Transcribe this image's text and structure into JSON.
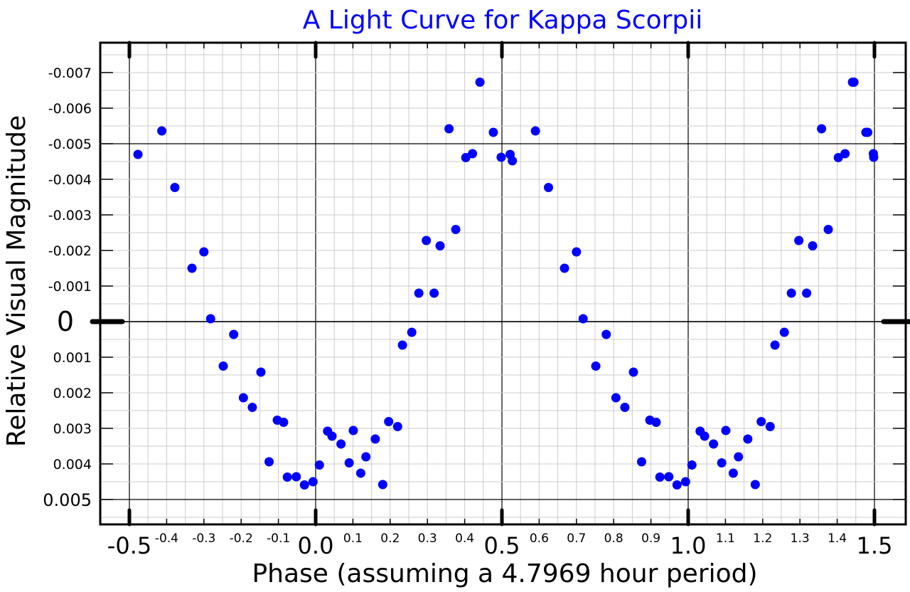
{
  "chart_data": {
    "type": "scatter",
    "title": "A Light Curve for Kappa Scorpii",
    "xlabel": "Phase (assuming a 4.7969 hour period)",
    "ylabel": "Relative Visual Magnitude",
    "xlim": [
      -0.55,
      1.55
    ],
    "ylim": [
      0.0057,
      -0.0079
    ],
    "y_inverted": true,
    "grid": true,
    "marker_color": "#0000ff",
    "title_color": "#0000ff",
    "x_ticks_major": [
      {
        "value": -0.5,
        "label": "-0.5"
      },
      {
        "value": 0.0,
        "label": "0.0"
      },
      {
        "value": 0.5,
        "label": "0.5"
      },
      {
        "value": 1.0,
        "label": "1.0"
      },
      {
        "value": 1.5,
        "label": "1.5"
      }
    ],
    "x_ticks_minor": [
      {
        "value": -0.4,
        "label": "-0.4"
      },
      {
        "value": -0.3,
        "label": "-0.3"
      },
      {
        "value": -0.2,
        "label": "-0.2"
      },
      {
        "value": -0.1,
        "label": "-0.1"
      },
      {
        "value": 0.1,
        "label": "0.1"
      },
      {
        "value": 0.2,
        "label": "0.2"
      },
      {
        "value": 0.3,
        "label": "0.3"
      },
      {
        "value": 0.4,
        "label": "0.4"
      },
      {
        "value": 0.6,
        "label": "0.6"
      },
      {
        "value": 0.7,
        "label": "0.7"
      },
      {
        "value": 0.8,
        "label": "0.8"
      },
      {
        "value": 0.9,
        "label": "0.9"
      },
      {
        "value": 1.1,
        "label": "1.1"
      },
      {
        "value": 1.2,
        "label": "1.2"
      },
      {
        "value": 1.3,
        "label": "1.3"
      },
      {
        "value": 1.4,
        "label": "1.4"
      }
    ],
    "y_ticks": [
      {
        "value": -0.007,
        "label": "-0.007"
      },
      {
        "value": -0.006,
        "label": "-0.006"
      },
      {
        "value": -0.005,
        "label": "-0.005"
      },
      {
        "value": -0.004,
        "label": "-0.004"
      },
      {
        "value": -0.003,
        "label": "-0.003"
      },
      {
        "value": -0.002,
        "label": "-0.002"
      },
      {
        "value": -0.001,
        "label": "-0.001"
      },
      {
        "value": 0.0,
        "label": "0"
      },
      {
        "value": 0.001,
        "label": "0.001"
      },
      {
        "value": 0.002,
        "label": "0.002"
      },
      {
        "value": 0.003,
        "label": "0.003"
      },
      {
        "value": 0.004,
        "label": "0.004"
      },
      {
        "value": 0.005,
        "label": "0.005"
      }
    ],
    "points": [
      [
        -0.477,
        -0.0047
      ],
      [
        -0.413,
        -0.00536
      ],
      [
        -0.378,
        -0.00377
      ],
      [
        -0.332,
        -0.0015
      ],
      [
        -0.3,
        -0.00196
      ],
      [
        -0.282,
        -8e-05
      ],
      [
        -0.248,
        0.00125
      ],
      [
        -0.22,
        0.00036
      ],
      [
        -0.194,
        0.00214
      ],
      [
        -0.17,
        0.00241
      ],
      [
        -0.147,
        0.00142
      ],
      [
        -0.125,
        0.00394
      ],
      [
        -0.103,
        0.00277
      ],
      [
        -0.086,
        0.00283
      ],
      [
        -0.076,
        0.00437
      ],
      [
        -0.052,
        0.00436
      ],
      [
        -0.03,
        0.00459
      ],
      [
        -0.007,
        0.0045
      ],
      [
        0.01,
        0.00403
      ],
      [
        0.032,
        0.00308
      ],
      [
        0.044,
        0.00322
      ],
      [
        0.068,
        0.00344
      ],
      [
        0.09,
        0.00397
      ],
      [
        0.101,
        0.00306
      ],
      [
        0.121,
        0.00426
      ],
      [
        0.135,
        0.0038
      ],
      [
        0.16,
        0.0033
      ],
      [
        0.18,
        0.00458
      ],
      [
        0.196,
        0.00281
      ],
      [
        0.22,
        0.00295
      ],
      [
        0.233,
        0.00066
      ],
      [
        0.258,
        0.0003
      ],
      [
        0.277,
        -0.0008
      ],
      [
        0.297,
        -0.00228
      ],
      [
        0.318,
        -0.0008
      ],
      [
        0.334,
        -0.00213
      ],
      [
        0.358,
        -0.00542
      ],
      [
        0.376,
        -0.00259
      ],
      [
        0.403,
        -0.00461
      ],
      [
        0.421,
        -0.00472
      ],
      [
        0.441,
        -0.00673
      ],
      [
        0.477,
        -0.00532
      ],
      [
        0.498,
        -0.00462
      ],
      [
        0.522,
        -0.0047
      ],
      [
        0.528,
        -0.00452
      ],
      [
        0.59,
        -0.00536
      ],
      [
        0.625,
        -0.00377
      ],
      [
        0.668,
        -0.0015
      ],
      [
        0.7,
        -0.00196
      ],
      [
        0.718,
        -8e-05
      ],
      [
        0.752,
        0.00125
      ],
      [
        0.78,
        0.00036
      ],
      [
        0.806,
        0.00214
      ],
      [
        0.83,
        0.00241
      ],
      [
        0.853,
        0.00142
      ],
      [
        0.875,
        0.00394
      ],
      [
        0.897,
        0.00277
      ],
      [
        0.914,
        0.00283
      ],
      [
        0.924,
        0.00437
      ],
      [
        0.948,
        0.00436
      ],
      [
        0.97,
        0.00459
      ],
      [
        0.993,
        0.0045
      ],
      [
        1.01,
        0.00403
      ],
      [
        1.032,
        0.00308
      ],
      [
        1.044,
        0.00322
      ],
      [
        1.068,
        0.00344
      ],
      [
        1.09,
        0.00397
      ],
      [
        1.101,
        0.00306
      ],
      [
        1.121,
        0.00426
      ],
      [
        1.135,
        0.0038
      ],
      [
        1.16,
        0.0033
      ],
      [
        1.18,
        0.00458
      ],
      [
        1.196,
        0.00281
      ],
      [
        1.22,
        0.00295
      ],
      [
        1.233,
        0.00066
      ],
      [
        1.258,
        0.0003
      ],
      [
        1.277,
        -0.0008
      ],
      [
        1.297,
        -0.00228
      ],
      [
        1.318,
        -0.0008
      ],
      [
        1.334,
        -0.00213
      ],
      [
        1.358,
        -0.00542
      ],
      [
        1.376,
        -0.00259
      ],
      [
        1.403,
        -0.00461
      ],
      [
        1.421,
        -0.00472
      ],
      [
        1.441,
        -0.00673
      ],
      [
        1.445,
        -0.00673
      ],
      [
        1.477,
        -0.00532
      ],
      [
        1.482,
        -0.00532
      ],
      [
        1.498,
        -0.00462
      ],
      [
        1.497,
        -0.00472
      ]
    ]
  }
}
